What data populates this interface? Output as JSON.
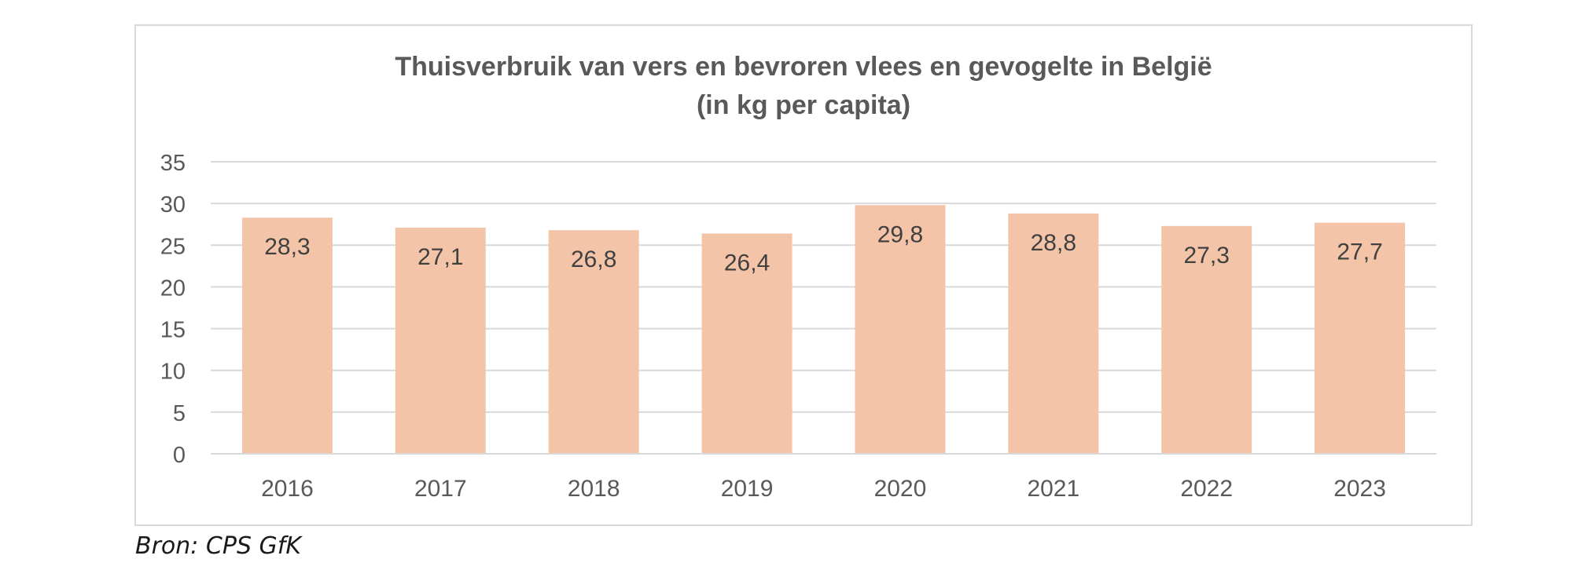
{
  "chart_data": {
    "type": "bar",
    "title": "Thuisverbruik van vers en bevroren vlees en gevogelte in België",
    "subtitle": "(in kg per capita)",
    "categories": [
      "2016",
      "2017",
      "2018",
      "2019",
      "2020",
      "2021",
      "2022",
      "2023"
    ],
    "values": [
      28.3,
      27.1,
      26.8,
      26.4,
      29.8,
      28.8,
      27.3,
      27.7
    ],
    "data_labels": [
      "28,3",
      "27,1",
      "26,8",
      "26,4",
      "29,8",
      "28,8",
      "27,3",
      "27,7"
    ],
    "y_ticks": [
      "0",
      "5",
      "10",
      "15",
      "20",
      "25",
      "30",
      "35"
    ],
    "ylim": [
      0,
      35
    ],
    "grid": true,
    "legend": "none",
    "bar_color": "#f4c4a8",
    "xlabel": "",
    "ylabel": ""
  },
  "source": "Bron: CPS GfK"
}
